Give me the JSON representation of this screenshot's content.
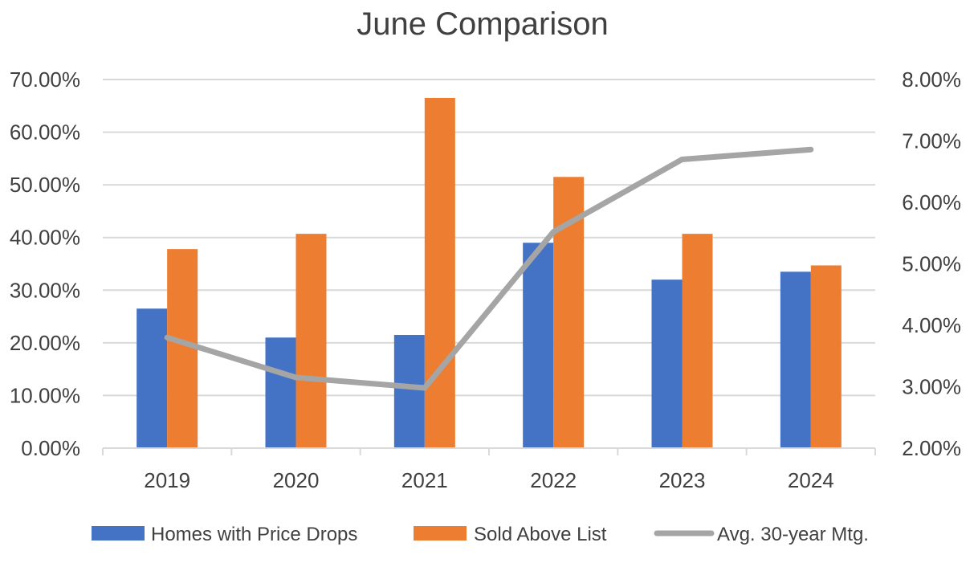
{
  "chart_data": {
    "type": "bar",
    "title": "June Comparison",
    "categories": [
      "2019",
      "2020",
      "2021",
      "2022",
      "2023",
      "2024"
    ],
    "series": [
      {
        "name": "Homes with Price Drops",
        "type": "bar",
        "axis": "left",
        "color": "#4472c4",
        "values": [
          26.5,
          21.0,
          21.5,
          39.0,
          32.0,
          33.5
        ]
      },
      {
        "name": "Sold Above List",
        "type": "bar",
        "axis": "left",
        "color": "#ed7d31",
        "values": [
          37.8,
          40.7,
          66.5,
          51.5,
          40.7,
          34.7
        ]
      },
      {
        "name": "Avg. 30-year Mtg.",
        "type": "line",
        "axis": "right",
        "color": "#a5a5a5",
        "values": [
          3.8,
          3.15,
          2.98,
          5.52,
          6.7,
          6.86
        ]
      }
    ],
    "y_left": {
      "ylim": [
        0,
        70
      ],
      "ticks": [
        "0.00%",
        "10.00%",
        "20.00%",
        "30.00%",
        "40.00%",
        "50.00%",
        "60.00%",
        "70.00%"
      ]
    },
    "y_right": {
      "ylim": [
        2,
        8
      ],
      "ticks": [
        "2.00%",
        "3.00%",
        "4.00%",
        "5.00%",
        "6.00%",
        "7.00%",
        "8.00%"
      ]
    },
    "grid": true,
    "legend_position": "bottom"
  }
}
